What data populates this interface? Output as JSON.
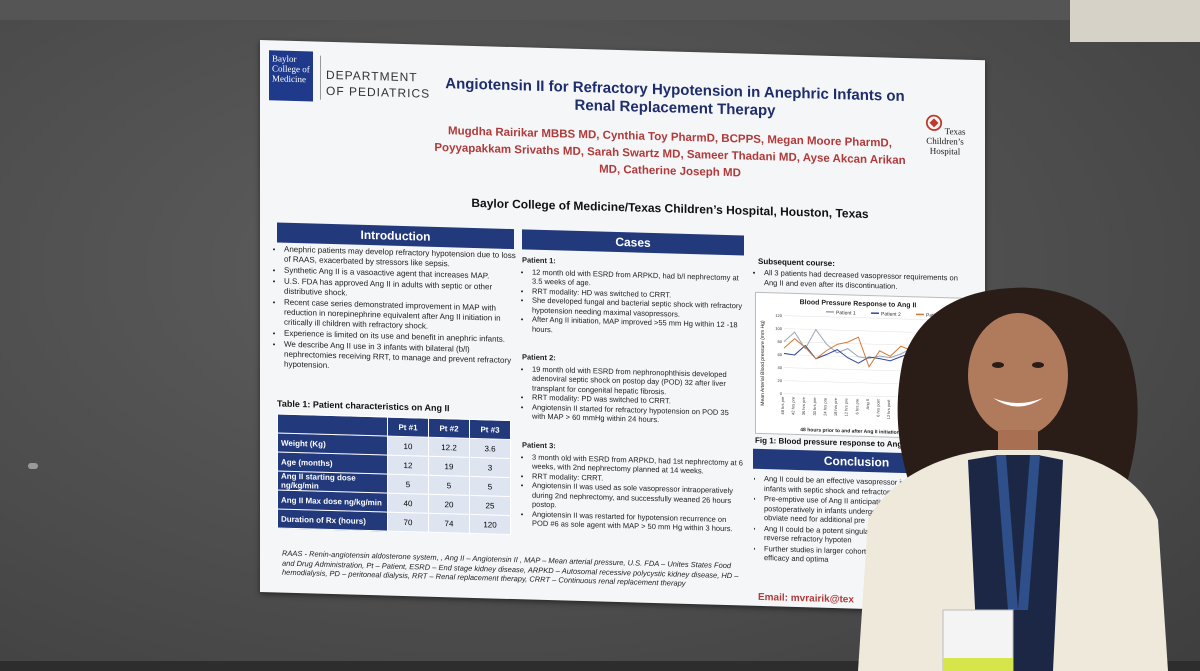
{
  "poster": {
    "logo_text": "Baylor College of Medicine",
    "department": "DEPARTMENT OF PEDIATRICS",
    "title": "Angiotensin II for Refractory Hypotension in Anephric Infants on Renal Replacement Therapy",
    "authors": "Mugdha Rairikar MBBS MD, Cynthia Toy PharmD, BCPPS, Megan Moore PharmD, Poyyapakkam Srivaths MD, Sarah Swartz MD, Sameer Thadani MD, Ayse Akcan Arikan MD, Catherine Joseph MD",
    "institution": "Baylor College of Medicine/Texas Children’s Hospital, Houston, Texas",
    "tch_logo": "Texas Children’s Hospital",
    "introduction": {
      "heading": "Introduction",
      "bullets": [
        "Anephric patients may develop refractory hypotension due to loss of RAAS, exacerbated by stressors like sepsis.",
        "Synthetic Ang II is a vasoactive agent that increases MAP.",
        "U.S. FDA has approved Ang II in adults with septic or other distributive shock.",
        "Recent case series demonstrated improvement in MAP with reduction in norepinephrine equivalent after Ang II initiation in critically ill children with refractory shock.",
        "Experience is limited on its use and benefit in anephric infants.",
        "We describe Ang II use in 3 infants with bilateral (b/l) nephrectomies receiving RRT, to manage and prevent refractory hypotension."
      ]
    },
    "table": {
      "title": "Table 1: Patient characteristics on Ang II",
      "headers": [
        "Pt #1",
        "Pt #2",
        "Pt #3"
      ],
      "rows": [
        {
          "label": "Weight (Kg)",
          "values": [
            "10",
            "12.2",
            "3.6"
          ]
        },
        {
          "label": "Age (months)",
          "values": [
            "12",
            "19",
            "3"
          ]
        },
        {
          "label": "Ang II starting dose ng/kg/min",
          "values": [
            "5",
            "5",
            "5"
          ]
        },
        {
          "label": "Ang II Max dose ng/kg/min",
          "values": [
            "40",
            "20",
            "25"
          ]
        },
        {
          "label": "Duration of Rx (hours)",
          "values": [
            "70",
            "74",
            "120"
          ]
        }
      ]
    },
    "cases": {
      "heading": "Cases",
      "patient1_title": "Patient 1:",
      "patient1": [
        "12 month old with ESRD from ARPKD, had b/l nephrectomy at 3.5 weeks of age.",
        "RRT modality: HD was switched to CRRT.",
        "She developed fungal and bacterial septic shock with refractory hypotension needing maximal vasopressors.",
        "After Ang II initiation, MAP improved >55 mm Hg within 12 -18 hours."
      ],
      "patient2_title": "Patient 2:",
      "patient2": [
        "19 month old with ESRD from nephronophthisis developed adenoviral septic shock on postop day (POD) 32 after liver transplant for congenital hepatic fibrosis.",
        "RRT modality: PD was switched to CRRT.",
        "Angiotensin II started for refractory hypotension on POD 35 with MAP > 60 mmHg within 24 hours."
      ],
      "patient3_title": "Patient 3:",
      "patient3": [
        "3 month old with ESRD from ARPKD, had 1st nephrectomy at 6 weeks, with 2nd nephrectomy planned at 14 weeks.",
        "RRT modality: CRRT.",
        "Angiotensin II was used as sole vasopressor intraoperatively during 2nd nephrectomy, and successfully weaned 26 hours postop.",
        "Angiotensin II was restarted for hypotension recurrence on POD #6 as sole agent with MAP > 50 mm Hg within 3 hours."
      ]
    },
    "subsequent": {
      "title": "Subsequent course:",
      "bullet": "All 3 patients had decreased vasopressor requirements on Ang II and even after its discontinuation."
    },
    "figure_caption": "Fig 1: Blood pressure response to Ang II",
    "conclusion": {
      "heading": "Conclusion",
      "bullets": [
        "Ang II could be an effective vasopressor in infants with septic shock and refractory h",
        "Pre-emptive use of Ang II anticipating l postoperatively in infants undergoing could obviate need for additional pre",
        "Ang II could be a potent singular ag and/or reverse refractory hypoten",
        "Further studies in larger cohorts characterize efficacy and optima"
      ]
    },
    "footnote": "RAAS - Renin-angiotensin aldosterone system, , Ang II – Angiotensin II , MAP – Mean arterial pressure, U.S. FDA – Unites States Food and Drug Administration, Pt – Patient, ESRD – End stage kidney disease, ARPKD – Autosomal recessive polycystic kidney disease, HD – hemodialysis, PD – peritoneal dialysis, RRT – Renal replacement therapy, CRRT – Continuous renal replacement therapy",
    "email": "Email: mvrairik@tex"
  },
  "chart_data": {
    "type": "line",
    "title": "Blood Pressure Response to Ang II",
    "ylabel": "Mean Arterial Blood pressure (mm Hg)",
    "xlabel": "48 hours prior to and after Ang II initiation in the 3 patie",
    "categories": [
      "48 hrs pre",
      "42 hrs pre",
      "36 hrs pre",
      "30 hrs pre",
      "24 hrs pre",
      "18 hrs pre",
      "12 hrs pre",
      "6 hrs pre",
      "Ang II",
      "6 hrs post",
      "12 hrs post",
      "18 hrs post",
      "24 hrs post",
      "30 hrs post",
      "36 hrs post",
      "42 hrs post",
      "48 hrs post"
    ],
    "series": [
      {
        "name": "Patient 1",
        "color": "#9aa6b8",
        "values": [
          80,
          95,
          70,
          100,
          78,
          65,
          72,
          60,
          58,
          62,
          60,
          66,
          75,
          70,
          68,
          72,
          70
        ]
      },
      {
        "name": "Patient 2",
        "color": "#2f4a9a",
        "values": [
          62,
          60,
          75,
          55,
          62,
          70,
          58,
          50,
          60,
          58,
          55,
          62,
          68,
          60,
          57,
          62,
          58
        ]
      },
      {
        "name": "Patient 3",
        "color": "#d07a3a",
        "values": [
          70,
          85,
          72,
          55,
          68,
          78,
          82,
          90,
          45,
          70,
          62,
          78,
          72,
          80,
          85,
          72,
          78
        ]
      }
    ],
    "ylim": [
      0,
      120
    ],
    "yticks": [
      "0",
      "20",
      "40",
      "60",
      "80",
      "100",
      "120"
    ],
    "legend": "top"
  }
}
